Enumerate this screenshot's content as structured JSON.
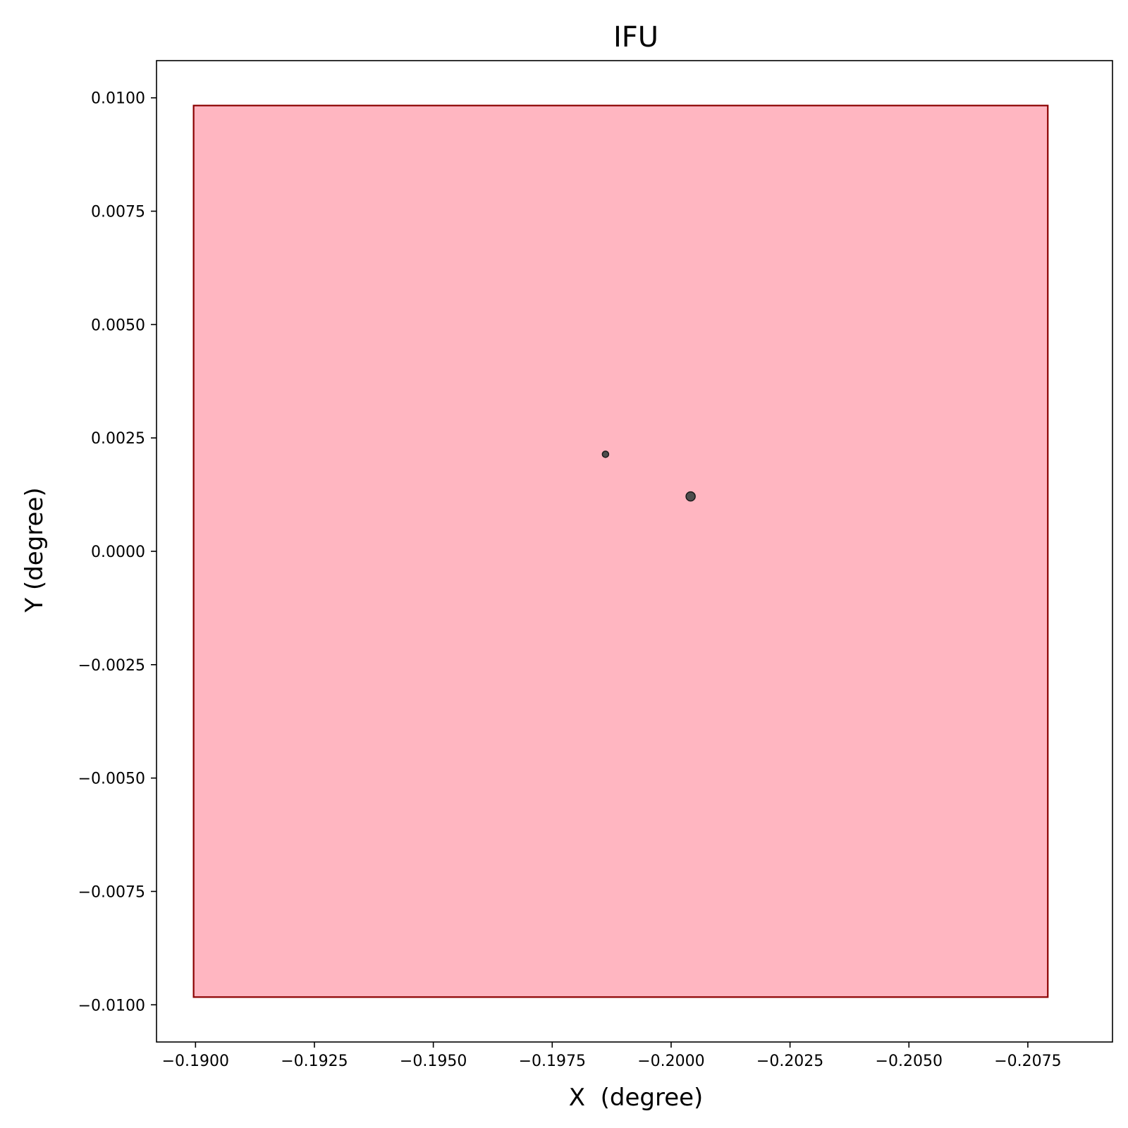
{
  "chart_data": {
    "type": "scatter",
    "title": "IFU",
    "xlabel": "X  (degree)",
    "ylabel": "Y (degree)",
    "xlim": [
      -0.18918,
      -0.20928
    ],
    "ylim": [
      -0.01082,
      0.01082
    ],
    "x_ticks": [
      -0.19,
      -0.1925,
      -0.195,
      -0.1975,
      -0.2,
      -0.2025,
      -0.205,
      -0.2075
    ],
    "x_tick_labels": [
      "−0.1900",
      "−0.1925",
      "−0.1950",
      "−0.1975",
      "−0.2000",
      "−0.2025",
      "−0.2050",
      "−0.2075"
    ],
    "y_ticks": [
      0.01,
      0.0075,
      0.005,
      0.0025,
      0.0,
      -0.0025,
      -0.005,
      -0.0075,
      -0.01
    ],
    "y_tick_labels": [
      "0.0100",
      "0.0075",
      "0.0050",
      "0.0025",
      "0.0000",
      "−0.0025",
      "−0.0050",
      "−0.0075",
      "−0.0100"
    ],
    "grid": false,
    "ifu_region": {
      "x": [
        -0.18996,
        -0.20792
      ],
      "y": [
        -0.00983,
        0.00983
      ],
      "fill": "#ffb6c1",
      "edge": "#8b0000"
    },
    "points": [
      {
        "x": -0.19862,
        "y": 0.00214,
        "size": "small"
      },
      {
        "x": -0.20041,
        "y": 0.00121,
        "size": "large"
      }
    ],
    "point_color": "#4d4d4d"
  }
}
